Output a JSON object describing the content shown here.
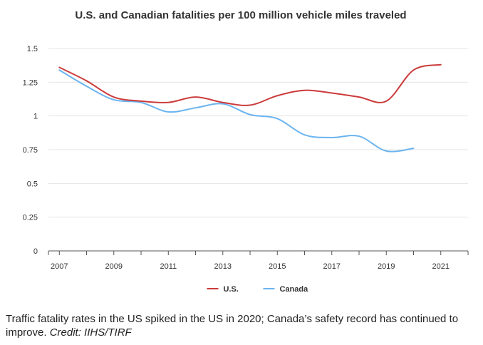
{
  "chart_data": {
    "type": "line",
    "title": "U.S. and Canadian fatalities per 100 million vehicle miles traveled",
    "xlabel": "",
    "ylabel": "",
    "xlim": [
      2006.6,
      2022.0
    ],
    "ylim": [
      0,
      1.5
    ],
    "x_ticks": [
      2007,
      2009,
      2011,
      2013,
      2015,
      2017,
      2019,
      2021
    ],
    "y_ticks": [
      0,
      0.25,
      0.5,
      0.75,
      1,
      1.25,
      1.5
    ],
    "y_tick_labels": [
      "0",
      "0.25",
      "0.5",
      "0.75",
      "1",
      "1.25",
      "1.5"
    ],
    "grid": true,
    "legend_position": "bottom-center",
    "series": [
      {
        "name": "U.S.",
        "color": "#cc3b3b",
        "x": [
          2007,
          2008,
          2009,
          2010,
          2011,
          2012,
          2013,
          2014,
          2015,
          2016,
          2017,
          2018,
          2019,
          2020,
          2021
        ],
        "values": [
          1.36,
          1.26,
          1.14,
          1.11,
          1.1,
          1.14,
          1.1,
          1.08,
          1.15,
          1.19,
          1.17,
          1.14,
          1.11,
          1.34,
          1.38
        ]
      },
      {
        "name": "Canada",
        "color": "#6ab4f0",
        "x": [
          2007,
          2008,
          2009,
          2010,
          2011,
          2012,
          2013,
          2014,
          2015,
          2016,
          2017,
          2018,
          2019,
          2020
        ],
        "values": [
          1.34,
          1.22,
          1.12,
          1.1,
          1.03,
          1.06,
          1.09,
          1.01,
          0.98,
          0.86,
          0.84,
          0.85,
          0.74,
          0.76
        ]
      }
    ]
  },
  "caption": {
    "text": "Traffic fatality rates in the US spiked in the US in 2020; Canada’s safety record has continued to improve. ",
    "credit": "Credit: IIHS/TIRF"
  }
}
